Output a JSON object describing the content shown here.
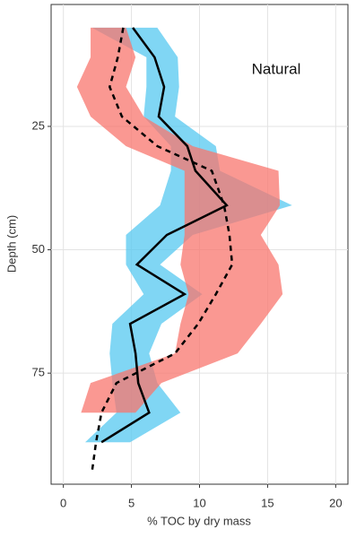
{
  "chart_data": {
    "type": "depth-profile",
    "legend_text": "Natural",
    "xlabel": "% TOC by dry mass",
    "ylabel": "Depth (cm)",
    "xlim": [
      -0.9,
      20.9
    ],
    "xticks": [
      0,
      5,
      10,
      15,
      20
    ],
    "ylim": [
      0.3,
      97.5
    ],
    "yticks": [
      25,
      50,
      75
    ],
    "y_reversed": true,
    "grid": true,
    "y": [
      5,
      11,
      17,
      23,
      29,
      34,
      41,
      47,
      53,
      59,
      65,
      71,
      77,
      83,
      89,
      95
    ],
    "series": [
      {
        "color": "#000000",
        "dash": false,
        "band_color": "#56c8f0",
        "values": [
          5.1,
          6.7,
          7.4,
          7.0,
          9.1,
          9.7,
          12.0,
          7.6,
          5.4,
          8.9,
          4.9,
          5.3,
          5.5,
          6.3,
          2.8,
          null
        ],
        "lower": [
          2.1,
          6.1,
          6.1,
          5.9,
          7.9,
          7.9,
          7.1,
          4.6,
          4.6,
          5.9,
          3.6,
          3.4,
          3.6,
          3.9,
          1.6,
          null
        ],
        "upper": [
          6.9,
          8.4,
          8.5,
          8.2,
          11.2,
          11.5,
          16.8,
          9.5,
          7.1,
          10.2,
          7.2,
          6.3,
          6.9,
          8.6,
          4.9,
          null
        ]
      },
      {
        "color": "#000000",
        "dash": true,
        "band_color": "#f8766d",
        "values": [
          4.4,
          4.0,
          3.4,
          4.3,
          6.9,
          10.9,
          11.8,
          12.2,
          12.4,
          11.2,
          9.9,
          8.2,
          3.9,
          2.8,
          2.4,
          2.1
        ],
        "lower": [
          2.0,
          2.0,
          1.0,
          2.0,
          4.6,
          8.9,
          8.9,
          8.9,
          8.6,
          9.2,
          8.6,
          8.2,
          2.0,
          1.3,
          null,
          null
        ],
        "upper": [
          4.6,
          5.3,
          4.6,
          5.9,
          9.5,
          15.8,
          15.9,
          14.5,
          15.8,
          16.1,
          14.5,
          12.8,
          7.2,
          5.3,
          null,
          null
        ]
      }
    ]
  }
}
